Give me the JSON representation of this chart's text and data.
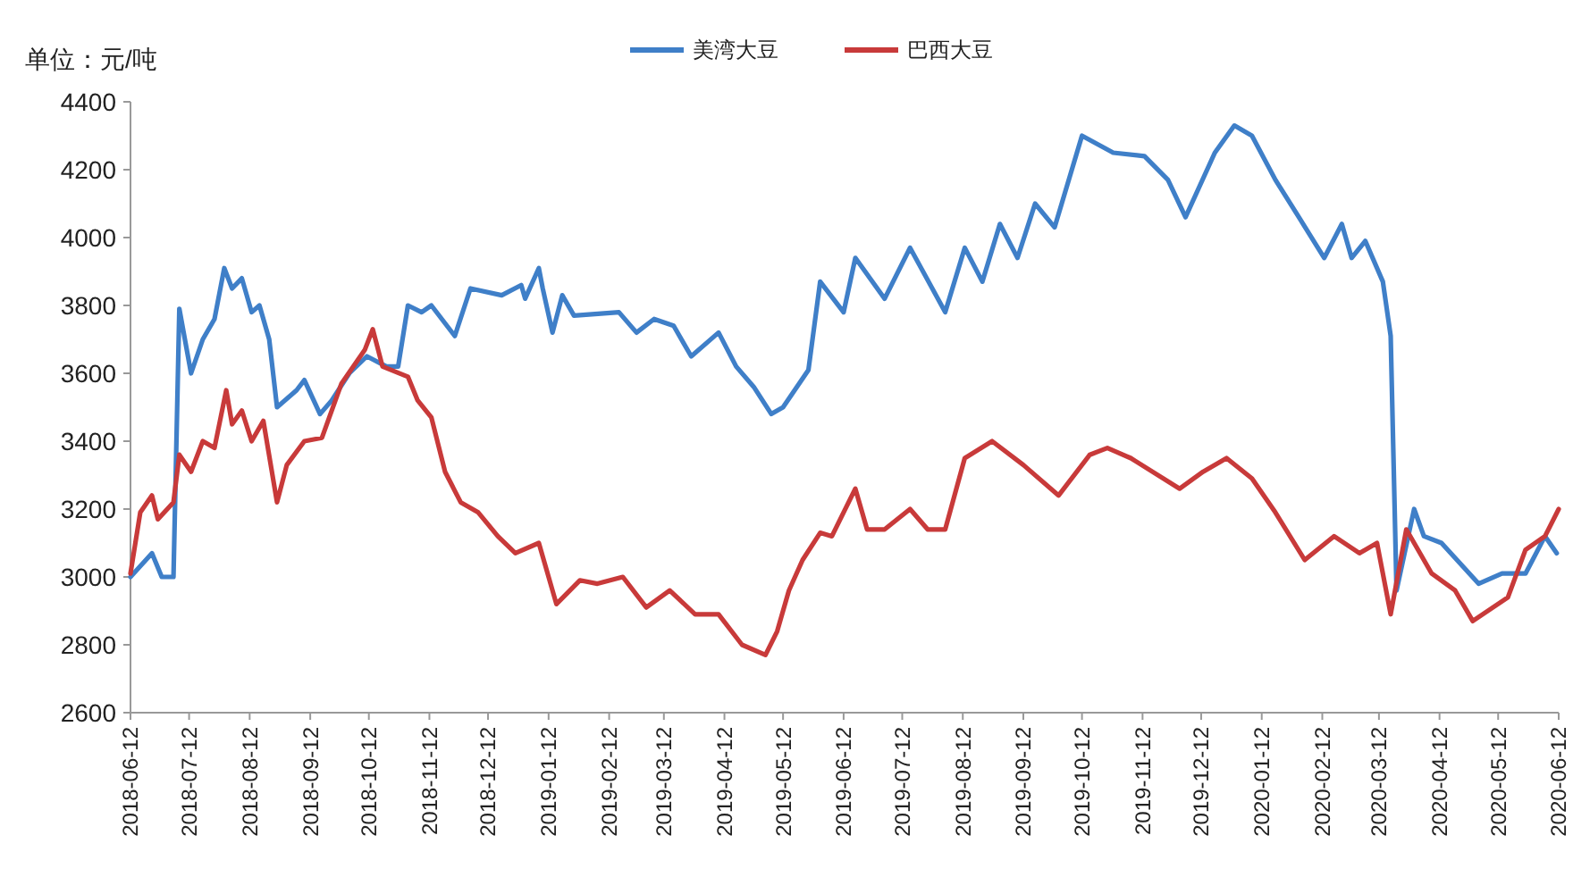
{
  "chart_data": {
    "type": "line",
    "ylabel": "单位：元/吨",
    "legend": "top",
    "grid": false,
    "line_style": "solid",
    "marker": "none",
    "xlim": [
      "2018-06-12",
      "2020-06-12"
    ],
    "xticks": [
      {
        "value": "2018-06-12",
        "label": "2018-06-12"
      },
      {
        "value": "2018-07-12",
        "label": "2018-07-12"
      },
      {
        "value": "2018-08-12",
        "label": "2018-08-12"
      },
      {
        "value": "2018-09-12",
        "label": "2018-09-12"
      },
      {
        "value": "2018-10-12",
        "label": "2018-10-12"
      },
      {
        "value": "2018-11-12",
        "label": "2018-11-12"
      },
      {
        "value": "2018-12-12",
        "label": "2018-12-12"
      },
      {
        "value": "2019-01-12",
        "label": "2019-01-12"
      },
      {
        "value": "2019-02-12",
        "label": "2019-02-12"
      },
      {
        "value": "2019-03-12",
        "label": "2019-03-12"
      },
      {
        "value": "2019-04-12",
        "label": "2019-04-12"
      },
      {
        "value": "2019-05-12",
        "label": "2019-05-12"
      },
      {
        "value": "2019-06-12",
        "label": "2019-06-12"
      },
      {
        "value": "2019-07-12",
        "label": "2019-07-12"
      },
      {
        "value": "2019-08-12",
        "label": "2019-08-12"
      },
      {
        "value": "2019-09-12",
        "label": "2019-09-12"
      },
      {
        "value": "2019-10-12",
        "label": "2019-10-12"
      },
      {
        "value": "2019-11-12",
        "label": "2019-11-12"
      },
      {
        "value": "2019-12-12",
        "label": "2019-12-12"
      },
      {
        "value": "2020-01-12",
        "label": "2020-01-12"
      },
      {
        "value": "2020-02-12",
        "label": "2020-02-12"
      },
      {
        "value": "2020-03-12",
        "label": "2020-03-12"
      },
      {
        "value": "2020-04-12",
        "label": "2020-04-12"
      },
      {
        "value": "2020-05-12",
        "label": "2020-05-12"
      },
      {
        "value": "2020-06-12",
        "label": "2020-06-12"
      }
    ],
    "ylim": [
      2600,
      4400
    ],
    "yticks": [
      2600,
      2800,
      3000,
      3200,
      3400,
      3600,
      3800,
      4000,
      4200,
      4400
    ],
    "series": [
      {
        "name": "美湾大豆",
        "color": "#3f7fc8",
        "x": [
          "2018-06-12",
          "2018-06-23",
          "2018-06-28",
          "2018-07-04",
          "2018-07-07",
          "2018-07-13",
          "2018-07-19",
          "2018-07-25",
          "2018-07-30",
          "2018-08-03",
          "2018-08-08",
          "2018-08-13",
          "2018-08-17",
          "2018-08-22",
          "2018-08-26",
          "2018-09-05",
          "2018-09-09",
          "2018-09-17",
          "2018-09-23",
          "2018-10-02",
          "2018-10-11",
          "2018-10-21",
          "2018-10-27",
          "2018-11-01",
          "2018-11-08",
          "2018-11-13",
          "2018-11-25",
          "2018-12-03",
          "2018-12-19",
          "2018-12-29",
          "2018-12-31",
          "2019-01-07",
          "2019-01-09",
          "2019-01-14",
          "2019-01-19",
          "2019-01-25",
          "2019-02-17",
          "2019-02-26",
          "2019-03-07",
          "2019-03-17",
          "2019-03-26",
          "2019-04-09",
          "2019-04-18",
          "2019-04-27",
          "2019-05-06",
          "2019-05-12",
          "2019-05-25",
          "2019-05-31",
          "2019-06-12",
          "2019-06-18",
          "2019-07-03",
          "2019-07-16",
          "2019-08-03",
          "2019-08-13",
          "2019-08-22",
          "2019-08-31",
          "2019-09-09",
          "2019-09-18",
          "2019-09-28",
          "2019-10-12",
          "2019-10-28",
          "2019-11-13",
          "2019-11-25",
          "2019-12-04",
          "2019-12-19",
          "2019-12-29",
          "2020-01-07",
          "2020-01-19",
          "2020-01-31",
          "2020-02-13",
          "2020-02-22",
          "2020-02-27",
          "2020-03-05",
          "2020-03-14",
          "2020-03-18",
          "2020-03-21",
          "2020-03-30",
          "2020-04-04",
          "2020-04-13",
          "2020-05-02",
          "2020-05-14",
          "2020-05-26",
          "2020-06-05",
          "2020-06-11"
        ],
        "values": [
          3000,
          3070,
          3000,
          3000,
          3790,
          3600,
          3700,
          3760,
          3910,
          3850,
          3880,
          3780,
          3800,
          3700,
          3500,
          3550,
          3580,
          3480,
          3520,
          3600,
          3650,
          3620,
          3620,
          3800,
          3780,
          3800,
          3710,
          3850,
          3830,
          3860,
          3820,
          3910,
          3850,
          3720,
          3830,
          3770,
          3780,
          3720,
          3760,
          3740,
          3650,
          3720,
          3620,
          3560,
          3480,
          3500,
          3610,
          3870,
          3780,
          3940,
          3820,
          3970,
          3780,
          3970,
          3870,
          4040,
          3940,
          4100,
          4030,
          4300,
          4250,
          4240,
          4170,
          4060,
          4250,
          4330,
          4300,
          4170,
          4060,
          3940,
          4040,
          3940,
          3990,
          3870,
          3710,
          2960,
          3200,
          3120,
          3100,
          2980,
          3010,
          3010,
          3120,
          3070
        ]
      },
      {
        "name": "巴西大豆",
        "color": "#c83a3a",
        "x": [
          "2018-06-12",
          "2018-06-17",
          "2018-06-23",
          "2018-06-26",
          "2018-07-04",
          "2018-07-07",
          "2018-07-13",
          "2018-07-19",
          "2018-07-25",
          "2018-07-31",
          "2018-08-03",
          "2018-08-08",
          "2018-08-13",
          "2018-08-19",
          "2018-08-26",
          "2018-08-31",
          "2018-09-09",
          "2018-09-18",
          "2018-09-28",
          "2018-10-10",
          "2018-10-14",
          "2018-10-19",
          "2018-11-01",
          "2018-11-06",
          "2018-11-13",
          "2018-11-20",
          "2018-11-28",
          "2018-12-07",
          "2018-12-17",
          "2018-12-26",
          "2019-01-07",
          "2019-01-16",
          "2019-01-28",
          "2019-02-06",
          "2019-02-19",
          "2019-03-03",
          "2019-03-15",
          "2019-03-28",
          "2019-04-09",
          "2019-04-21",
          "2019-05-03",
          "2019-05-09",
          "2019-05-15",
          "2019-05-22",
          "2019-05-31",
          "2019-06-06",
          "2019-06-18",
          "2019-06-24",
          "2019-07-03",
          "2019-07-16",
          "2019-07-25",
          "2019-08-03",
          "2019-08-13",
          "2019-08-27",
          "2019-09-12",
          "2019-09-30",
          "2019-10-16",
          "2019-10-25",
          "2019-11-06",
          "2019-12-01",
          "2019-12-13",
          "2019-12-25",
          "2020-01-07",
          "2020-01-19",
          "2020-02-03",
          "2020-02-18",
          "2020-03-02",
          "2020-03-11",
          "2020-03-18",
          "2020-03-26",
          "2020-04-08",
          "2020-04-20",
          "2020-04-29",
          "2020-05-17",
          "2020-05-26",
          "2020-06-05",
          "2020-06-12"
        ],
        "values": [
          3010,
          3190,
          3240,
          3170,
          3220,
          3360,
          3310,
          3400,
          3380,
          3550,
          3450,
          3490,
          3400,
          3460,
          3220,
          3330,
          3400,
          3410,
          3570,
          3670,
          3730,
          3620,
          3590,
          3520,
          3470,
          3310,
          3220,
          3190,
          3120,
          3070,
          3100,
          2920,
          2990,
          2980,
          3000,
          2910,
          2960,
          2890,
          2890,
          2800,
          2770,
          2840,
          2960,
          3050,
          3130,
          3120,
          3260,
          3140,
          3140,
          3200,
          3140,
          3140,
          3350,
          3400,
          3330,
          3240,
          3360,
          3380,
          3350,
          3260,
          3310,
          3350,
          3290,
          3190,
          3050,
          3120,
          3070,
          3100,
          2890,
          3140,
          3010,
          2960,
          2870,
          2940,
          3080,
          3120,
          3200
        ]
      }
    ]
  }
}
